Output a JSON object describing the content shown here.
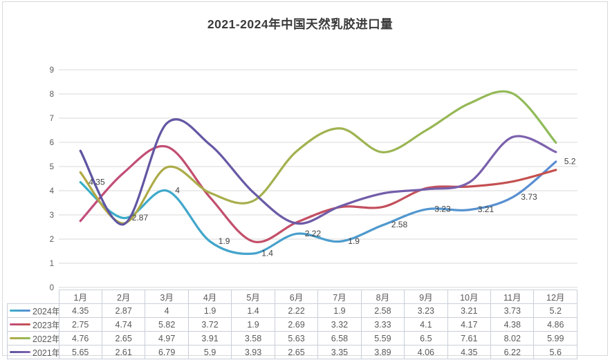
{
  "title": "2021-2024年中国天然乳胶进口量",
  "chart_data": {
    "type": "line",
    "smooth": true,
    "grid": "horizontal",
    "legend_position": "table-left",
    "ylim": [
      0,
      9
    ],
    "ytick_step": 1,
    "categories": [
      "1月",
      "2月",
      "3月",
      "4月",
      "5月",
      "6月",
      "7月",
      "8月",
      "9月",
      "10月",
      "11月",
      "12月"
    ],
    "series": [
      {
        "name": "2024年",
        "show_labels": true,
        "color_start": "#39AFC8",
        "color_end": "#5C8CD2",
        "values": [
          4.35,
          2.87,
          4,
          1.9,
          1.4,
          2.22,
          1.9,
          2.58,
          3.23,
          3.21,
          3.73,
          5.2
        ]
      },
      {
        "name": "2023年",
        "show_labels": false,
        "color_start": "#C24E7C",
        "color_end": "#C4504B",
        "values": [
          2.75,
          4.74,
          5.82,
          3.72,
          1.9,
          2.69,
          3.32,
          3.33,
          4.1,
          4.17,
          4.38,
          4.86
        ]
      },
      {
        "name": "2022年",
        "show_labels": false,
        "color_start": "#B3A845",
        "color_end": "#8FBC5A",
        "values": [
          4.76,
          2.65,
          4.97,
          3.91,
          3.58,
          5.63,
          6.58,
          5.59,
          6.5,
          7.61,
          8.02,
          5.99
        ]
      },
      {
        "name": "2021年",
        "show_labels": false,
        "color_start": "#5D54A1",
        "color_end": "#7F63AE",
        "values": [
          5.65,
          2.61,
          6.79,
          5.9,
          3.93,
          2.65,
          3.35,
          3.89,
          4.06,
          4.35,
          6.22,
          5.6
        ]
      }
    ]
  },
  "colors": {
    "grid": "#DADADA",
    "axis_text": "#595959",
    "table_border": "#C9CFD8",
    "table_text": "#595959",
    "title_text": "#3A3A3A",
    "data_label_text": "#404040",
    "frame_border": "#D8D8D8",
    "background": "#FFFFFF"
  }
}
